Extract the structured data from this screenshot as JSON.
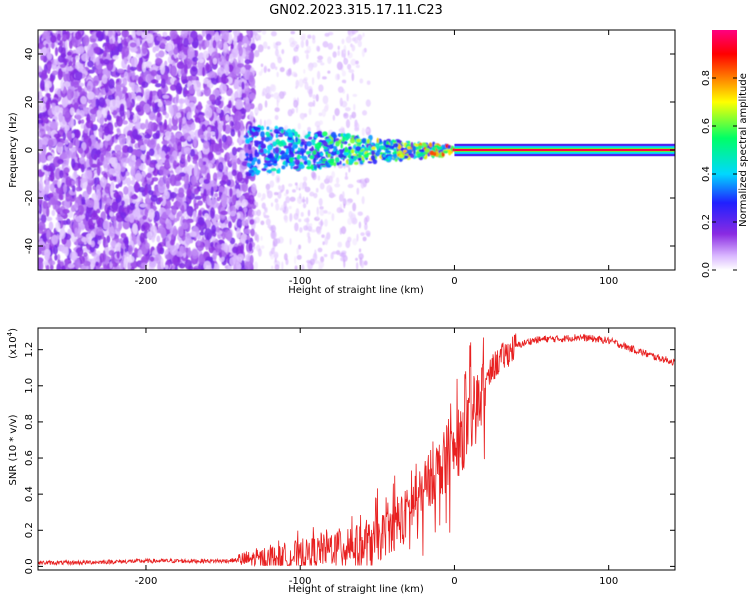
{
  "figure": {
    "title": "GN02.2023.315.17.11.C23"
  },
  "colors": {
    "snr_line": "#e82020",
    "spectrogram_background": "#7f2fff",
    "colorbar_stops": [
      "#ffffff",
      "#d9b6ff",
      "#8a2be2",
      "#2020ff",
      "#00d8ff",
      "#00ff66",
      "#ffff00",
      "#ff8000",
      "#ff0000",
      "#ff0080"
    ]
  },
  "chart_data": [
    {
      "type": "heatmap",
      "title": "GN02.2023.315.17.11.C23",
      "xlabel": "Height of straight line (km)",
      "ylabel": "Frequency (Hz)",
      "xlim": [
        -270,
        143
      ],
      "ylim": [
        -50,
        50
      ],
      "xticks": [
        -200,
        -100,
        0,
        100
      ],
      "xtick_labels": [
        "-200",
        "-100",
        "0",
        "100"
      ],
      "yticks": [
        -40,
        -20,
        0,
        20,
        40
      ],
      "ytick_labels": [
        "-40",
        "-20",
        "0",
        "20",
        "40"
      ],
      "colorbar": {
        "label": "Normalized spectral amplitude",
        "range": [
          0.0,
          1.0
        ],
        "ticks": [
          0.0,
          0.2,
          0.4,
          0.6,
          0.8
        ],
        "tick_labels": [
          "0.0",
          "0.2",
          "0.4",
          "0.6",
          "0.8"
        ],
        "colormap": "white-purple-blue-cyan-green-yellow-red-magenta"
      },
      "features": {
        "noise_region_x": [
          -270,
          -130
        ],
        "noise_amplitude": 0.15,
        "transition_region_x": [
          -135,
          0
        ],
        "signal_line_x": [
          0,
          143
        ],
        "signal_line_frequency": 0,
        "signal_line_amplitude": 0.95
      },
      "grid": false
    },
    {
      "type": "line",
      "xlabel": "Height of straight line (km)",
      "ylabel": "SNR (10 * v/v)",
      "y_multiplier": "(x10^4)",
      "y_multiplier_base": "(x10",
      "y_multiplier_exp": "4",
      "y_multiplier_close": ")",
      "xlim": [
        -270,
        143
      ],
      "ylim": [
        -0.02,
        1.32
      ],
      "xticks": [
        -200,
        -100,
        0,
        100
      ],
      "xtick_labels": [
        "-200",
        "-100",
        "0",
        "100"
      ],
      "yticks": [
        0.0,
        0.2,
        0.4,
        0.6,
        0.8,
        1.0,
        1.2
      ],
      "ytick_labels": [
        "0.0",
        "0.2",
        "0.4",
        "0.6",
        "0.8",
        "1.0",
        "1.2"
      ],
      "series": [
        {
          "x": [
            -270,
            -250,
            -200,
            -150,
            -130,
            -110,
            -100,
            -90,
            -80,
            -70,
            -60,
            -50,
            -40,
            -30,
            -25,
            -20,
            -15,
            -10,
            -5,
            0,
            5,
            10,
            15,
            20,
            25,
            30,
            40,
            50,
            60,
            70,
            80,
            90,
            100,
            110,
            120,
            130,
            143
          ],
          "y": [
            0.02,
            0.02,
            0.03,
            0.03,
            0.04,
            0.05,
            0.06,
            0.08,
            0.1,
            0.12,
            0.11,
            0.14,
            0.22,
            0.3,
            0.36,
            0.4,
            0.5,
            0.55,
            0.6,
            0.63,
            0.7,
            0.8,
            0.9,
            1.0,
            1.1,
            1.15,
            1.22,
            1.25,
            1.26,
            1.26,
            1.27,
            1.26,
            1.25,
            1.22,
            1.19,
            1.16,
            1.13
          ]
        }
      ],
      "grid": false
    }
  ]
}
